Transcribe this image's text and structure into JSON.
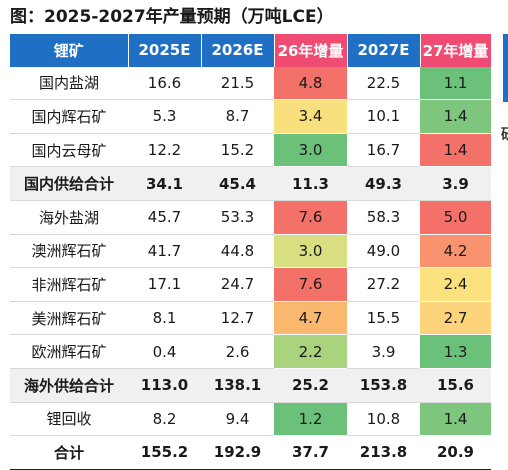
{
  "title": "图：2025-2027年产量预期（万吨LCE）",
  "side_fragment": "研",
  "headers": [
    "锂矿",
    "2025E",
    "2026E",
    "26年增量",
    "2027E",
    "27年增量"
  ],
  "rows": [
    {
      "name": "国内盐湖",
      "y2025": "16.6",
      "y2026": "21.5",
      "inc26": "4.8",
      "y2027": "22.5",
      "inc27": "1.1",
      "c26": "#f4716a",
      "c27": "#6cc17a"
    },
    {
      "name": "国内辉石矿",
      "y2025": "5.3",
      "y2026": "8.7",
      "inc26": "3.4",
      "y2027": "10.1",
      "inc27": "1.4",
      "c26": "#f9e07f",
      "c27": "#7ec57e"
    },
    {
      "name": "国内云母矿",
      "y2025": "12.2",
      "y2026": "15.2",
      "inc26": "3.0",
      "y2027": "16.7",
      "inc27": "1.4",
      "c26": "#6cc17a",
      "c27": "#f4716a"
    },
    {
      "name": "国内供给合计",
      "y2025": "34.1",
      "y2026": "45.4",
      "inc26": "11.3",
      "y2027": "49.3",
      "inc27": "3.9",
      "subtotal": true
    },
    {
      "name": "海外盐湖",
      "y2025": "45.7",
      "y2026": "53.3",
      "inc26": "7.6",
      "y2027": "58.3",
      "inc27": "5.0",
      "c26": "#f4716a",
      "c27": "#f4716a"
    },
    {
      "name": "澳洲辉石矿",
      "y2025": "41.7",
      "y2026": "44.8",
      "inc26": "3.0",
      "y2027": "49.0",
      "inc27": "4.2",
      "c26": "#d8df80",
      "c27": "#f8926f"
    },
    {
      "name": "非洲辉石矿",
      "y2025": "17.1",
      "y2026": "24.7",
      "inc26": "7.6",
      "y2027": "27.2",
      "inc27": "2.4",
      "c26": "#f4716a",
      "c27": "#fbe27f"
    },
    {
      "name": "美洲辉石矿",
      "y2025": "8.1",
      "y2026": "12.7",
      "inc26": "4.7",
      "y2027": "15.5",
      "inc27": "2.7",
      "c26": "#fab86e",
      "c27": "#fdd47c"
    },
    {
      "name": "欧洲辉石矿",
      "y2025": "0.4",
      "y2026": "2.6",
      "inc26": "2.2",
      "y2027": "3.9",
      "inc27": "1.3",
      "c26": "#a9d37d",
      "c27": "#6cc17a"
    },
    {
      "name": "海外供给合计",
      "y2025": "113.0",
      "y2026": "138.1",
      "inc26": "25.2",
      "y2027": "153.8",
      "inc27": "15.6",
      "subtotal": true
    },
    {
      "name": "锂回收",
      "y2025": "8.2",
      "y2026": "9.4",
      "inc26": "1.2",
      "y2027": "10.8",
      "inc27": "1.4",
      "c26": "#6cc17a",
      "c27": "#7ec57e"
    },
    {
      "name": "合计",
      "y2025": "155.2",
      "y2026": "192.9",
      "inc26": "37.7",
      "y2027": "213.8",
      "inc27": "20.9",
      "total": true
    }
  ]
}
